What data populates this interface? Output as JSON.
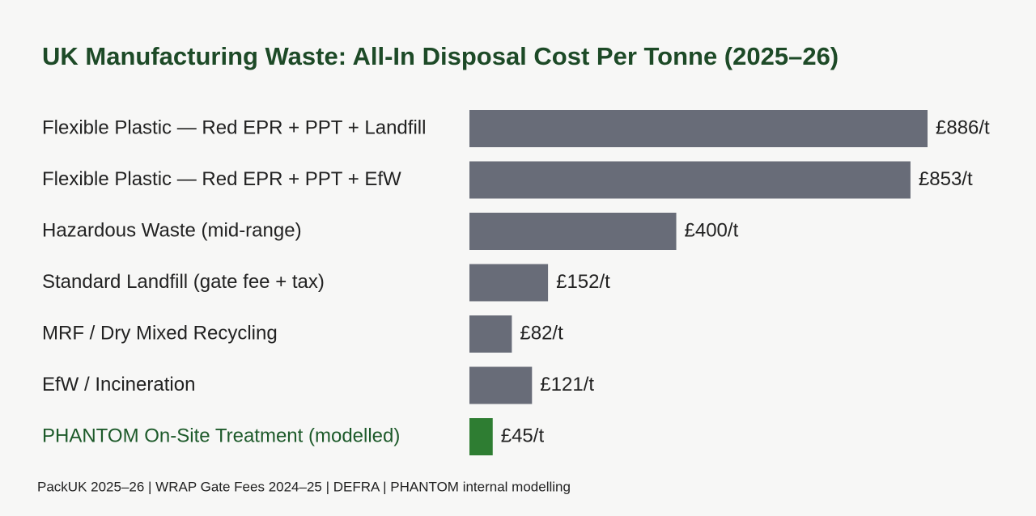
{
  "chart_data": {
    "type": "hbar",
    "title": "UK Manufacturing Waste: All-In Disposal Cost Per Tonne (2025–26)",
    "categories": [
      "Flexible Plastic — Red EPR + PPT + Landfill",
      "Flexible Plastic — Red EPR + PPT + EfW",
      "Hazardous Waste (mid-range)",
      "Standard Landfill (gate fee + tax)",
      "MRF / Dry Mixed Recycling",
      "EfW / Incineration",
      "PHANTOM On-Site Treatment (modelled)"
    ],
    "values": [
      886,
      853,
      400,
      152,
      82,
      121,
      45
    ],
    "value_labels": [
      "£886/t",
      "£853/t",
      "£400/t",
      "£152/t",
      "£82/t",
      "£121/t",
      "£45/t"
    ],
    "colors": [
      "#686c78",
      "#686c78",
      "#686c78",
      "#686c78",
      "#686c78",
      "#686c78",
      "#2e7d32"
    ],
    "label_colors": [
      "#222222",
      "#222222",
      "#222222",
      "#222222",
      "#222222",
      "#222222",
      "#1d5a2a"
    ],
    "source": "PackUK 2025–26 | WRAP Gate Fees 2024–25 | DEFRA | PHANTOM internal modelling"
  }
}
